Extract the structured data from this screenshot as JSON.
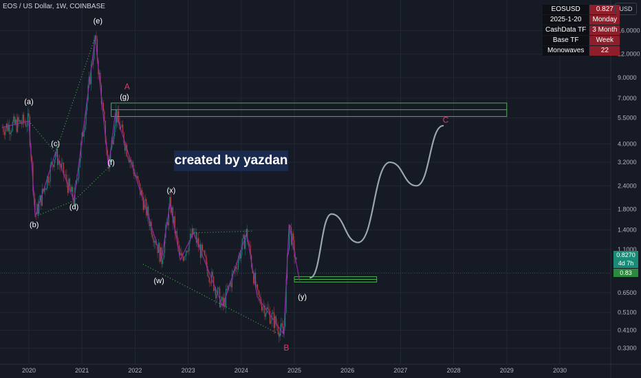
{
  "header": {
    "title": "EOS / US Dollar, 1W, COINBASE"
  },
  "info_table": [
    {
      "key": "EOSUSD",
      "value": "0.827"
    },
    {
      "key": "2025-1-20",
      "value": "Monday"
    },
    {
      "key": "CashData TF",
      "value": "3 Month"
    },
    {
      "key": "Base TF",
      "value": "Week"
    },
    {
      "key": "Monowaves",
      "value": "22"
    }
  ],
  "currency_button": "USD",
  "banner": "created by yazdan",
  "price_tag": {
    "value": "0.8270",
    "countdown": "4d 7h",
    "secondary": "0.83"
  },
  "chart_data": {
    "type": "line",
    "title": "EOS / US Dollar, 1W, COINBASE",
    "y_scale": "log",
    "ylim": [
      0.3,
      20
    ],
    "x_ticks": [
      "2020",
      "2021",
      "2022",
      "2023",
      "2024",
      "2025",
      "2026",
      "2027",
      "2028",
      "2029",
      "2030"
    ],
    "y_ticks": [
      "16.0000",
      "12.0000",
      "9.0000",
      "7.0000",
      "5.5000",
      "4.0000",
      "3.2000",
      "2.4000",
      "1.8000",
      "1.4000",
      "1.1000",
      "0.6500",
      "0.5100",
      "0.4100",
      "0.3300"
    ],
    "wave_path": [
      {
        "x": 2019.5,
        "y": 4.9
      },
      {
        "x": 2020.0,
        "y": 5.3
      },
      {
        "x": 2020.12,
        "y": 1.65
      },
      {
        "x": 2020.5,
        "y": 3.6
      },
      {
        "x": 2020.85,
        "y": 2.0
      },
      {
        "x": 2021.25,
        "y": 14.8
      },
      {
        "x": 2021.5,
        "y": 3.0
      },
      {
        "x": 2021.63,
        "y": 5.9
      },
      {
        "x": 2022.5,
        "y": 0.98
      },
      {
        "x": 2022.66,
        "y": 1.95
      },
      {
        "x": 2022.85,
        "y": 0.97
      },
      {
        "x": 2023.1,
        "y": 1.35
      },
      {
        "x": 2023.65,
        "y": 0.55
      },
      {
        "x": 2024.1,
        "y": 1.35
      },
      {
        "x": 2024.3,
        "y": 0.62
      },
      {
        "x": 2024.8,
        "y": 0.39
      },
      {
        "x": 2024.9,
        "y": 1.5
      },
      {
        "x": 2025.1,
        "y": 0.75
      }
    ],
    "projection_path": [
      {
        "x": 2025.3,
        "y": 0.78
      },
      {
        "x": 2025.7,
        "y": 1.7
      },
      {
        "x": 2026.2,
        "y": 1.2
      },
      {
        "x": 2026.8,
        "y": 3.2
      },
      {
        "x": 2027.3,
        "y": 2.4
      },
      {
        "x": 2027.8,
        "y": 5.0
      }
    ],
    "zones": [
      {
        "name": "upper",
        "y_low": 5.6,
        "y_high": 6.6,
        "x_start": 2021.55,
        "x_end": 2029.0
      },
      {
        "name": "lower",
        "y_low": 0.74,
        "y_high": 0.79,
        "x_start": 2025.0,
        "x_end": 2026.55
      }
    ],
    "wave_labels": [
      {
        "text": "(a)",
        "x": 2020.0,
        "y": 6.5
      },
      {
        "text": "(b)",
        "x": 2020.1,
        "y": 1.45
      },
      {
        "text": "(c)",
        "x": 2020.5,
        "y": 3.9
      },
      {
        "text": "(d)",
        "x": 2020.85,
        "y": 1.8
      },
      {
        "text": "(e)",
        "x": 2021.3,
        "y": 17.5
      },
      {
        "text": "(f)",
        "x": 2021.55,
        "y": 3.1
      },
      {
        "text": "(g)",
        "x": 2021.8,
        "y": 6.9
      },
      {
        "text": "(w)",
        "x": 2022.45,
        "y": 0.73
      },
      {
        "text": "(x)",
        "x": 2022.68,
        "y": 2.2
      },
      {
        "text": "(y)",
        "x": 2025.15,
        "y": 0.6
      },
      {
        "text": "A",
        "x": 2021.85,
        "y": 7.8
      },
      {
        "text": "B",
        "x": 2024.85,
        "y": 0.32
      },
      {
        "text": "C",
        "x": 2027.85,
        "y": 5.2
      }
    ],
    "last_price": 0.827
  },
  "colors": {
    "background": "#161a25",
    "grid": "#232735",
    "text": "#b2b5be",
    "wave": "#9c27b0",
    "projection": "#9aa6b2",
    "zone": "#4caf50",
    "trendline": "#4caf50",
    "accent_red": "#e53965",
    "price_line": "#1b8a76"
  }
}
